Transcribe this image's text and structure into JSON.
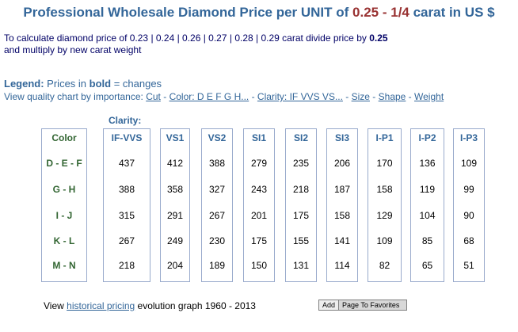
{
  "title": {
    "prefix": "Professional Wholesale Diamond Price per UNIT of ",
    "highlight": "0.25 - 1/4",
    "suffix": " carat in US $"
  },
  "intro": {
    "line1_text": "To calculate diamond price of  0.23 | 0.24 | 0.26 | 0.27 | 0.28 | 0.29 carat divide price by ",
    "line1_value": "0.25",
    "line2": "and multiply by new carat weight"
  },
  "legend": {
    "label": "Legend:",
    "text1": " Prices in ",
    "bold": "bold",
    "text2": " = changes"
  },
  "view_chart": {
    "prefix": "View quality chart by importance: ",
    "sep": " - ",
    "links": [
      "Cut",
      "Color: D E F G H...",
      "Clarity: IF VVS VS...",
      "Size",
      "Shape",
      "Weight"
    ]
  },
  "clarity_label": "Clarity:",
  "table": {
    "color_header": "Color",
    "colors": [
      "D - E - F",
      "G - H",
      "I - J",
      "K - L",
      "M - N"
    ],
    "clarity_headers": [
      "IF-VVS",
      "VS1",
      "VS2",
      "SI1",
      "SI2",
      "SI3",
      "I-P1",
      "I-P2",
      "I-P3"
    ],
    "prices": [
      [
        "437",
        "388",
        "315",
        "267",
        "218"
      ],
      [
        "412",
        "358",
        "291",
        "249",
        "204"
      ],
      [
        "388",
        "327",
        "267",
        "230",
        "189"
      ],
      [
        "279",
        "243",
        "201",
        "175",
        "150"
      ],
      [
        "235",
        "218",
        "175",
        "155",
        "131"
      ],
      [
        "206",
        "187",
        "158",
        "141",
        "114"
      ],
      [
        "170",
        "158",
        "129",
        "109",
        "82"
      ],
      [
        "136",
        "119",
        "104",
        "85",
        "65"
      ],
      [
        "109",
        "99",
        "90",
        "68",
        "51"
      ]
    ]
  },
  "footer": {
    "prefix": "View ",
    "link": "historical pricing",
    "suffix": " evolution graph 1960 - 2013"
  },
  "favorites_button": {
    "add": "Add",
    "label": "Page To Favorites"
  },
  "colors": {
    "title_blue": "#336699",
    "highlight_red": "#993333",
    "color_green": "#336633",
    "border": "#99aacc"
  }
}
